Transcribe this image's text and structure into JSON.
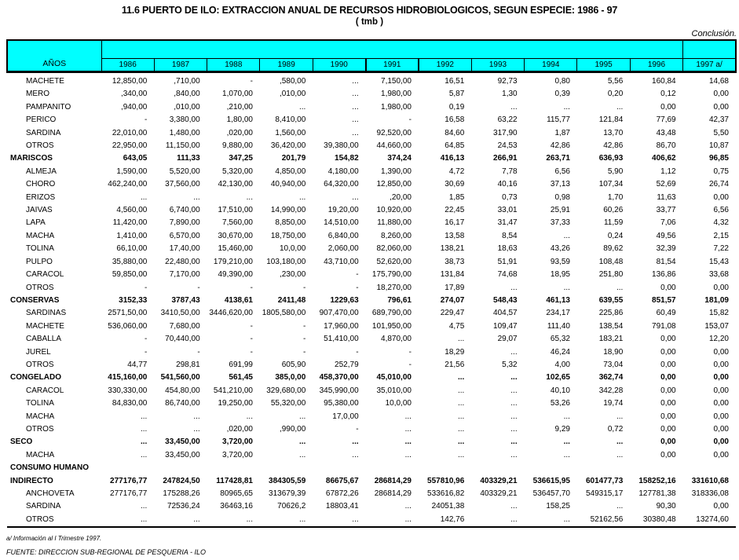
{
  "title": "11.6  PUERTO DE ILO: EXTRACCION ANUAL DE RECURSOS HIDROBIOLOGICOS, SEGUN ESPECIE: 1986 - 97",
  "subtitle": "( tmb )",
  "conclusion_note": "Conclusión.",
  "colors": {
    "header_bg": "#00ffff",
    "border": "#000000",
    "text": "#000000"
  },
  "table": {
    "row_header": "AÑOS",
    "columns": [
      "1986",
      "1987",
      "1988",
      "1989",
      "1990",
      "1991",
      "1992",
      "1993",
      "1994",
      "1995",
      "1996",
      "1997 a/"
    ],
    "thick_border_column": "1991",
    "rows": [
      {
        "label": "MACHETE",
        "indent": true,
        "bold": false,
        "values": [
          "12,850,00",
          ",710,00",
          "-",
          ",580,00",
          "...",
          "7,150,00",
          "16,51",
          "92,73",
          "0,80",
          "5,56",
          "160,84",
          "14,68"
        ]
      },
      {
        "label": "MERO",
        "indent": true,
        "bold": false,
        "values": [
          ",340,00",
          ",840,00",
          "1,070,00",
          ",010,00",
          "...",
          "1,980,00",
          "5,87",
          "1,30",
          "0,39",
          "0,20",
          "0,12",
          "0,00"
        ]
      },
      {
        "label": "PAMPANITO",
        "indent": true,
        "bold": false,
        "values": [
          ",940,00",
          ",010,00",
          ",210,00",
          "...",
          "...",
          "1,980,00",
          "0,19",
          "...",
          "...",
          "...",
          "0,00",
          "0,00"
        ]
      },
      {
        "label": "PERICO",
        "indent": true,
        "bold": false,
        "values": [
          "-",
          "3,380,00",
          "1,80,00",
          "8,410,00",
          "...",
          "-",
          "16,58",
          "63,22",
          "115,77",
          "121,84",
          "77,69",
          "42,37"
        ]
      },
      {
        "label": "SARDINA",
        "indent": true,
        "bold": false,
        "values": [
          "22,010,00",
          "1,480,00",
          ",020,00",
          "1,560,00",
          "...",
          "92,520,00",
          "84,60",
          "317,90",
          "1,87",
          "13,70",
          "43,48",
          "5,50"
        ]
      },
      {
        "label": "OTROS",
        "indent": true,
        "bold": false,
        "values": [
          "22,950,00",
          "11,150,00",
          "9,880,00",
          "36,420,00",
          "39,380,00",
          "44,660,00",
          "64,85",
          "24,53",
          "42,86",
          "42,86",
          "86,70",
          "10,87"
        ]
      },
      {
        "label": "MARISCOS",
        "indent": false,
        "bold": true,
        "values": [
          "643,05",
          "111,33",
          "347,25",
          "201,79",
          "154,82",
          "374,24",
          "416,13",
          "266,91",
          "263,71",
          "636,93",
          "406,62",
          "96,85"
        ]
      },
      {
        "label": "ALMEJA",
        "indent": true,
        "bold": false,
        "values": [
          "1,590,00",
          "5,520,00",
          "5,320,00",
          "4,850,00",
          "4,180,00",
          "1,390,00",
          "4,72",
          "7,78",
          "6,56",
          "5,90",
          "1,12",
          "0,75"
        ]
      },
      {
        "label": "CHORO",
        "indent": true,
        "bold": false,
        "values": [
          "462,240,00",
          "37,560,00",
          "42,130,00",
          "40,940,00",
          "64,320,00",
          "12,850,00",
          "30,69",
          "40,16",
          "37,13",
          "107,34",
          "52,69",
          "26,74"
        ]
      },
      {
        "label": "ERIZOS",
        "indent": true,
        "bold": false,
        "values": [
          "...",
          "...",
          "...",
          "...",
          "...",
          ",20,00",
          "1,85",
          "0,73",
          "0,98",
          "1,70",
          "11,63",
          "0,00"
        ]
      },
      {
        "label": "JAIVAS",
        "indent": true,
        "bold": false,
        "values": [
          "4,560,00",
          "6,740,00",
          "17,510,00",
          "14,990,00",
          "19,20,00",
          "10,920,00",
          "22,45",
          "33,01",
          "25,91",
          "60,26",
          "33,77",
          "6,56"
        ]
      },
      {
        "label": "LAPA",
        "indent": true,
        "bold": false,
        "values": [
          "11,420,00",
          "7,890,00",
          "7,560,00",
          "8,850,00",
          "14,510,00",
          "11,880,00",
          "16,17",
          "31,47",
          "37,33",
          "11,59",
          "7,06",
          "4,32"
        ]
      },
      {
        "label": "MACHA",
        "indent": true,
        "bold": false,
        "values": [
          "1,410,00",
          "6,570,00",
          "30,670,00",
          "18,750,00",
          "6,840,00",
          "8,260,00",
          "13,58",
          "8,54",
          "...",
          "0,24",
          "49,56",
          "2,15"
        ]
      },
      {
        "label": "TOLINA",
        "indent": true,
        "bold": false,
        "values": [
          "66,10,00",
          "17,40,00",
          "15,460,00",
          "10,0,00",
          "2,060,00",
          "82,060,00",
          "138,21",
          "18,63",
          "43,26",
          "89,62",
          "32,39",
          "7,22"
        ]
      },
      {
        "label": "PULPO",
        "indent": true,
        "bold": false,
        "values": [
          "35,880,00",
          "22,480,00",
          "179,210,00",
          "103,180,00",
          "43,710,00",
          "52,620,00",
          "38,73",
          "51,91",
          "93,59",
          "108,48",
          "81,54",
          "15,43"
        ]
      },
      {
        "label": "CARACOL",
        "indent": true,
        "bold": false,
        "values": [
          "59,850,00",
          "7,170,00",
          "49,390,00",
          ",230,00",
          "-",
          "175,790,00",
          "131,84",
          "74,68",
          "18,95",
          "251,80",
          "136,86",
          "33,68"
        ]
      },
      {
        "label": "OTROS",
        "indent": true,
        "bold": false,
        "values": [
          "-",
          "-",
          "-",
          "-",
          "-",
          "18,270,00",
          "17,89",
          "...",
          "...",
          "...",
          "0,00",
          "0,00"
        ]
      },
      {
        "label": "CONSERVAS",
        "indent": false,
        "bold": true,
        "values": [
          "3152,33",
          "3787,43",
          "4138,61",
          "2411,48",
          "1229,63",
          "796,61",
          "274,07",
          "548,43",
          "461,13",
          "639,55",
          "851,57",
          "181,09"
        ]
      },
      {
        "label": "SARDINAS",
        "indent": true,
        "bold": false,
        "values": [
          "2571,50,00",
          "3410,50,00",
          "3446,620,00",
          "1805,580,00",
          "907,470,00",
          "689,790,00",
          "229,47",
          "404,57",
          "234,17",
          "225,86",
          "60,49",
          "15,82"
        ]
      },
      {
        "label": "MACHETE",
        "indent": true,
        "bold": false,
        "values": [
          "536,060,00",
          "7,680,00",
          "-",
          "-",
          "17,960,00",
          "101,950,00",
          "4,75",
          "109,47",
          "111,40",
          "138,54",
          "791,08",
          "153,07"
        ]
      },
      {
        "label": "CABALLA",
        "indent": true,
        "bold": false,
        "values": [
          "-",
          "70,440,00",
          "-",
          "-",
          "51,410,00",
          "4,870,00",
          "...",
          "29,07",
          "65,32",
          "183,21",
          "0,00",
          "12,20"
        ]
      },
      {
        "label": "JUREL",
        "indent": true,
        "bold": false,
        "values": [
          "-",
          "-",
          "-",
          "-",
          "-",
          "-",
          "18,29",
          "...",
          "46,24",
          "18,90",
          "0,00",
          "0,00"
        ]
      },
      {
        "label": "OTROS",
        "indent": true,
        "bold": false,
        "values": [
          "44,77",
          "298,81",
          "691,99",
          "605,90",
          "252,79",
          "-",
          "21,56",
          "5,32",
          "4,00",
          "73,04",
          "0,00",
          "0,00"
        ]
      },
      {
        "label": "CONGELADO",
        "indent": false,
        "bold": true,
        "values": [
          "415,160,00",
          "541,560,00",
          "561,45",
          "385,0,00",
          "458,370,00",
          "45,010,00",
          "...",
          "...",
          "102,65",
          "362,74",
          "0,00",
          "0,00"
        ]
      },
      {
        "label": "CARACOL",
        "indent": true,
        "bold": false,
        "values": [
          "330,330,00",
          "454,80,00",
          "541,210,00",
          "329,680,00",
          "345,990,00",
          "35,010,00",
          "...",
          "...",
          "40,10",
          "342,28",
          "0,00",
          "0,00"
        ]
      },
      {
        "label": "TOLINA",
        "indent": true,
        "bold": false,
        "values": [
          "84,830,00",
          "86,740,00",
          "19,250,00",
          "55,320,00",
          "95,380,00",
          "10,0,00",
          "...",
          "...",
          "53,26",
          "19,74",
          "0,00",
          "0,00"
        ]
      },
      {
        "label": "MACHA",
        "indent": true,
        "bold": false,
        "values": [
          "...",
          "...",
          "...",
          "...",
          "17,0,00",
          "...",
          "...",
          "...",
          "...",
          "...",
          "0,00",
          "0,00"
        ]
      },
      {
        "label": "OTROS",
        "indent": true,
        "bold": false,
        "values": [
          "...",
          "...",
          ",020,00",
          ",990,00",
          "-",
          "...",
          "...",
          "...",
          "9,29",
          "0,72",
          "0,00",
          "0,00"
        ]
      },
      {
        "label": "SECO",
        "indent": false,
        "bold": true,
        "values": [
          "...",
          "33,450,00",
          "3,720,00",
          "...",
          "...",
          "...",
          "...",
          "...",
          "...",
          "...",
          "0,00",
          "0,00"
        ]
      },
      {
        "label": "MACHA",
        "indent": true,
        "bold": false,
        "values": [
          "...",
          "33,450,00",
          "3,720,00",
          "...",
          "...",
          "...",
          "...",
          "...",
          "...",
          "...",
          "0,00",
          "0,00"
        ]
      },
      {
        "label": "CONSUMO HUMANO",
        "indent": false,
        "bold": true,
        "values": [
          "",
          "",
          "",
          "",
          "",
          "",
          "",
          "",
          "",
          "",
          "",
          ""
        ]
      },
      {
        "label": "INDIRECTO",
        "indent": false,
        "bold": true,
        "values": [
          "277176,77",
          "247824,50",
          "117428,81",
          "384305,59",
          "86675,67",
          "286814,29",
          "557810,96",
          "403329,21",
          "536615,95",
          "601477,73",
          "158252,16",
          "331610,68"
        ]
      },
      {
        "label": "ANCHOVETA",
        "indent": true,
        "bold": false,
        "values": [
          "277176,77",
          "175288,26",
          "80965,65",
          "313679,39",
          "67872,26",
          "286814,29",
          "533616,82",
          "403329,21",
          "536457,70",
          "549315,17",
          "127781,38",
          "318336,08"
        ]
      },
      {
        "label": "SARDINA",
        "indent": true,
        "bold": false,
        "values": [
          "...",
          "72536,24",
          "36463,16",
          "70626,2",
          "18803,41",
          "...",
          "24051,38",
          "...",
          "158,25",
          "...",
          "90,30",
          "0,00"
        ]
      },
      {
        "label": "OTROS",
        "indent": true,
        "bold": false,
        "values": [
          "...",
          "...",
          "...",
          "...",
          "...",
          "...",
          "142,76",
          "...",
          "...",
          "52162,56",
          "30380,48",
          "13274,60"
        ]
      }
    ]
  },
  "footnotes": {
    "trimestre": "a/ Información al I Trimestre 1997.",
    "fuente": "FUENTE: DIRECCION SUB-REGIONAL DE PESQUERIA - ILO"
  }
}
